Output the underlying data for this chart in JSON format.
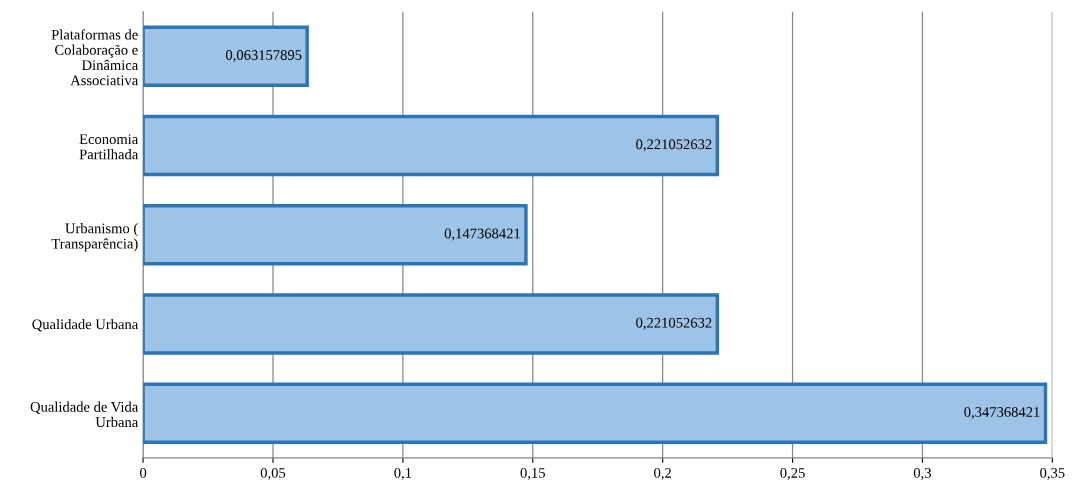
{
  "chart_data": {
    "type": "bar",
    "orientation": "horizontal",
    "categories": [
      "Plataformas de\nColaboração e\nDinâmica\nAssociativa",
      "Economia\nPartilhada",
      "Urbanismo (\nTransparência)",
      "Qualidade Urbana",
      "Qualidade de Vida\nUrbana"
    ],
    "values": [
      0.063157895,
      0.221052632,
      0.147368421,
      0.221052632,
      0.347368421
    ],
    "value_labels": [
      "0,063157895",
      "0,221052632",
      "0,147368421",
      "0,221052632",
      "0,347368421"
    ],
    "color": "#9dc3e6",
    "xlim": [
      0,
      0.35
    ],
    "xticks": [
      0,
      {
        "value": 0.05,
        "label": "0,05"
      },
      {
        "value": 0.1,
        "label": "0,1"
      },
      {
        "value": 0.15,
        "label": "0,15"
      },
      {
        "value": 0.2,
        "label": "0,2"
      },
      {
        "value": 0.25,
        "label": "0,25"
      },
      {
        "value": 0.3,
        "label": "0,3"
      },
      {
        "value": 0.35,
        "label": "0,35"
      }
    ],
    "grid": "x",
    "legend": false
  }
}
